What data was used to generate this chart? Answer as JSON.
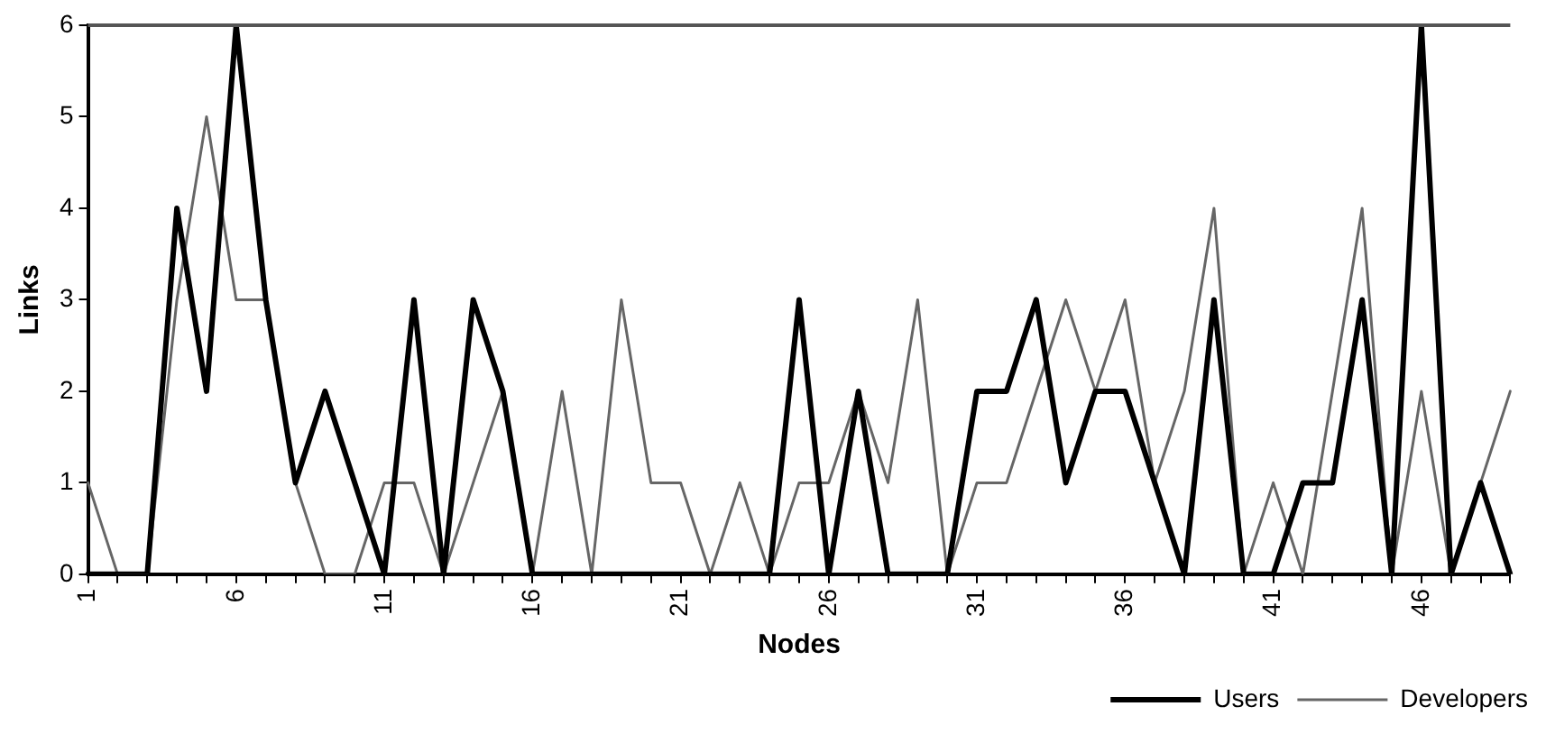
{
  "chart_data": {
    "type": "line",
    "xlabel": "Nodes",
    "ylabel": "Links",
    "categories": [
      "1",
      null,
      null,
      null,
      null,
      "6",
      null,
      null,
      null,
      null,
      "11",
      null,
      null,
      null,
      null,
      "16",
      null,
      null,
      null,
      null,
      "21",
      null,
      null,
      null,
      null,
      "26",
      null,
      null,
      null,
      null,
      "31",
      null,
      null,
      null,
      null,
      "36",
      null,
      null,
      null,
      null,
      "41",
      null,
      null,
      null,
      null,
      "46",
      null,
      null,
      null
    ],
    "ylim": [
      0,
      6
    ],
    "yticks": [
      0,
      1,
      2,
      3,
      4,
      5,
      6
    ],
    "grid": false,
    "legend": "bottom right",
    "marker": "none",
    "line_style": "solid",
    "series": [
      {
        "name": "Users",
        "color": "#000000",
        "values": [
          0,
          0,
          0,
          4,
          2,
          6,
          3,
          1,
          2,
          1,
          0,
          3,
          0,
          3,
          2,
          0,
          0,
          0,
          0,
          0,
          0,
          0,
          0,
          0,
          3,
          0,
          2,
          0,
          0,
          0,
          2,
          2,
          3,
          1,
          2,
          2,
          1,
          0,
          3,
          0,
          0,
          1,
          1,
          3,
          0,
          6,
          0,
          1,
          0
        ]
      },
      {
        "name": "Developers",
        "color": "#666666",
        "values": [
          1,
          0,
          0,
          3,
          5,
          3,
          3,
          1,
          0,
          0,
          1,
          1,
          0,
          1,
          2,
          0,
          2,
          0,
          3,
          1,
          1,
          0,
          1,
          0,
          1,
          1,
          2,
          1,
          3,
          0,
          1,
          1,
          2,
          3,
          2,
          3,
          1,
          2,
          4,
          0,
          1,
          0,
          2,
          4,
          0,
          2,
          0,
          1,
          2
        ]
      }
    ]
  }
}
